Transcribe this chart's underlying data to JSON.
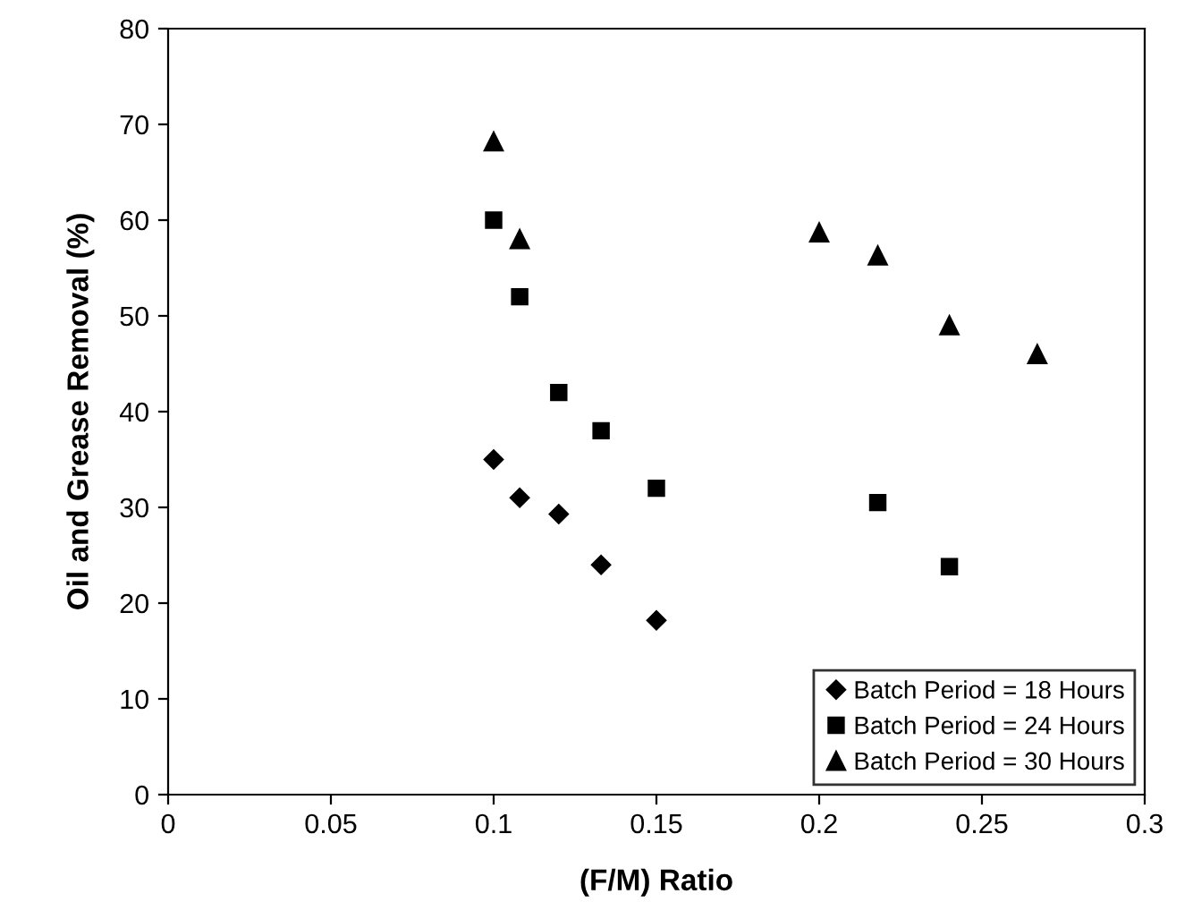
{
  "chart_data": {
    "type": "scatter",
    "xlabel": "(F/M) Ratio",
    "ylabel": "Oil and Grease Removal (%)",
    "xlim": [
      0,
      0.3
    ],
    "xticks": [
      0,
      0.05,
      0.1,
      0.15,
      0.2,
      0.25,
      0.3
    ],
    "ylim": [
      0,
      80
    ],
    "yticks": [
      0,
      10,
      20,
      30,
      40,
      50,
      60,
      70,
      80
    ],
    "grid": false,
    "legend": "bottom right",
    "series": [
      {
        "name": "Batch Period = 18 Hours",
        "color": "#000000",
        "marker": "diamond",
        "x": [
          0.1,
          0.108,
          0.12,
          0.133,
          0.15
        ],
        "values": [
          35,
          31,
          29.3,
          24,
          18.2
        ]
      },
      {
        "name": "Batch Period = 24 Hours",
        "color": "#000000",
        "marker": "square",
        "x": [
          0.1,
          0.108,
          0.12,
          0.133,
          0.15,
          0.218,
          0.24
        ],
        "values": [
          60,
          52,
          42,
          38,
          32,
          30.5,
          23.8
        ]
      },
      {
        "name": "Batch Period = 30 Hours",
        "color": "#000000",
        "marker": "triangle",
        "x": [
          0.1,
          0.108,
          0.2,
          0.218,
          0.24,
          0.267
        ],
        "values": [
          68.2,
          58,
          58.7,
          56.3,
          49,
          46
        ]
      }
    ]
  }
}
